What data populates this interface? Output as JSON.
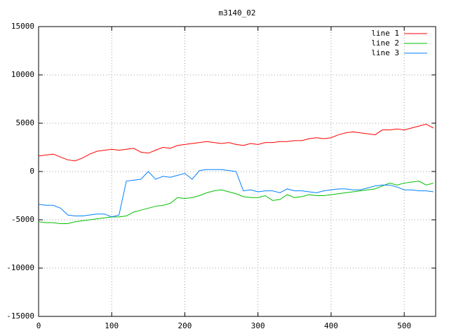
{
  "chart_data": {
    "type": "line",
    "title": "m3140_02",
    "x": [
      0,
      10,
      20,
      30,
      40,
      50,
      60,
      70,
      80,
      90,
      100,
      110,
      120,
      130,
      140,
      150,
      160,
      170,
      180,
      190,
      200,
      210,
      220,
      230,
      240,
      250,
      260,
      270,
      280,
      290,
      300,
      310,
      320,
      330,
      340,
      350,
      360,
      370,
      380,
      390,
      400,
      410,
      420,
      430,
      440,
      450,
      460,
      470,
      480,
      490,
      500,
      510,
      520,
      530,
      540
    ],
    "series": [
      {
        "name": "line 1",
        "color": "#ff0000",
        "values": [
          1600,
          1700,
          1800,
          1500,
          1200,
          1100,
          1400,
          1800,
          2100,
          2200,
          2300,
          2200,
          2300,
          2400,
          2000,
          1900,
          2200,
          2500,
          2400,
          2700,
          2800,
          2900,
          3000,
          3100,
          3000,
          2900,
          3000,
          2800,
          2700,
          2900,
          2800,
          3000,
          3000,
          3100,
          3100,
          3200,
          3200,
          3400,
          3500,
          3400,
          3500,
          3800,
          4000,
          4100,
          4000,
          3900,
          3800,
          4300,
          4300,
          4400,
          4300,
          4500,
          4700,
          4900,
          4500
        ]
      },
      {
        "name": "line 2",
        "color": "#00c000",
        "values": [
          -5200,
          -5300,
          -5300,
          -5400,
          -5400,
          -5200,
          -5100,
          -5000,
          -4900,
          -4800,
          -4700,
          -4700,
          -4600,
          -4200,
          -4000,
          -3800,
          -3600,
          -3500,
          -3300,
          -2700,
          -2800,
          -2700,
          -2500,
          -2200,
          -2000,
          -1900,
          -2100,
          -2300,
          -2600,
          -2700,
          -2700,
          -2500,
          -3000,
          -2900,
          -2400,
          -2700,
          -2600,
          -2400,
          -2500,
          -2500,
          -2400,
          -2300,
          -2200,
          -2100,
          -2000,
          -1900,
          -1800,
          -1500,
          -1200,
          -1400,
          -1200,
          -1100,
          -1000,
          -1400,
          -1200
        ]
      },
      {
        "name": "line 3",
        "color": "#0080ff",
        "values": [
          -3400,
          -3500,
          -3500,
          -3800,
          -4500,
          -4600,
          -4600,
          -4500,
          -4400,
          -4400,
          -4700,
          -4500,
          -1000,
          -900,
          -800,
          0,
          -800,
          -500,
          -600,
          -400,
          -200,
          -800,
          100,
          200,
          200,
          200,
          100,
          0,
          -2000,
          -1900,
          -2100,
          -2000,
          -2000,
          -2200,
          -1800,
          -2000,
          -2000,
          -2100,
          -2200,
          -2000,
          -1900,
          -1800,
          -1800,
          -1900,
          -1900,
          -1700,
          -1500,
          -1400,
          -1400,
          -1600,
          -1900,
          -1900,
          -2000,
          -2000,
          -2100
        ]
      }
    ],
    "xlim": [
      0,
      543
    ],
    "xticks": [
      0,
      100,
      200,
      300,
      400,
      500
    ],
    "ylim": [
      -15000,
      15000
    ],
    "yticks": [
      -15000,
      -10000,
      -5000,
      0,
      5000,
      10000,
      15000
    ],
    "grid": true,
    "legend": "top-right"
  }
}
